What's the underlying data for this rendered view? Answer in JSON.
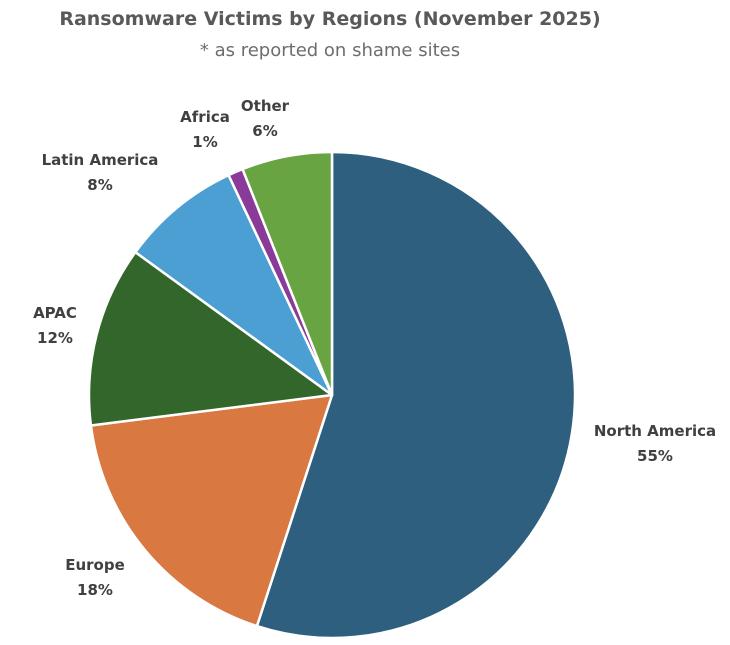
{
  "chart_data": {
    "type": "pie",
    "title": "Ransomware Victims by Regions (November 2025)",
    "subtitle": "* as reported on shame sites",
    "slices": [
      {
        "label": "North America",
        "value": 55,
        "display": "55%",
        "color": "#2e5f7f"
      },
      {
        "label": "Europe",
        "value": 18,
        "display": "18%",
        "color": "#d97840"
      },
      {
        "label": "APAC",
        "value": 12,
        "display": "12%",
        "color": "#32662a"
      },
      {
        "label": "Latin America",
        "value": 8,
        "display": "8%",
        "color": "#4c9fd2"
      },
      {
        "label": "Africa",
        "value": 1,
        "display": "1%",
        "color": "#8a3a99"
      },
      {
        "label": "Other",
        "value": 6,
        "display": "6%",
        "color": "#69a443"
      }
    ],
    "legend": "none",
    "data_labels": "outside"
  }
}
